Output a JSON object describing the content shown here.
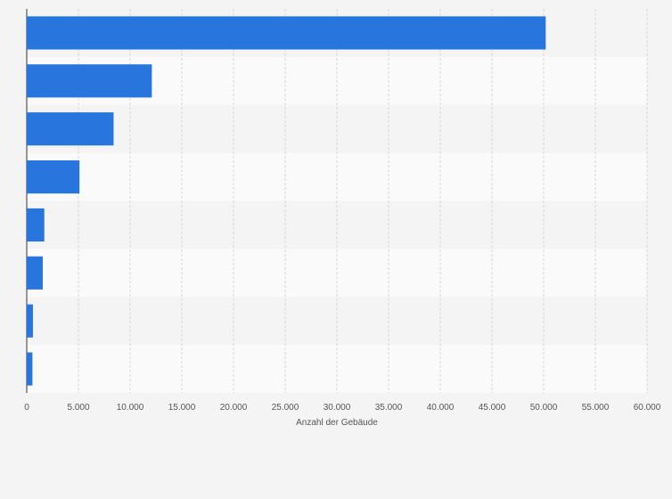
{
  "chart_data": {
    "type": "bar",
    "orientation": "horizontal",
    "categories": [
      "",
      "",
      "",
      "",
      "",
      "",
      "",
      ""
    ],
    "values": [
      50200,
      12100,
      8400,
      5100,
      1700,
      1550,
      600,
      550
    ],
    "xlabel": "Anzahl der Gebäude",
    "ylabel": "",
    "xlim": [
      0,
      60000
    ],
    "xticks": [
      0,
      5000,
      10000,
      15000,
      20000,
      25000,
      30000,
      35000,
      40000,
      45000,
      50000,
      55000,
      60000
    ],
    "xtick_labels": [
      "0",
      "5.000",
      "10.000",
      "15.000",
      "20.000",
      "25.000",
      "30.000",
      "35.000",
      "40.000",
      "45.000",
      "50.000",
      "55.000",
      "60.000"
    ],
    "grid": true,
    "bar_color": "#2876dd"
  }
}
